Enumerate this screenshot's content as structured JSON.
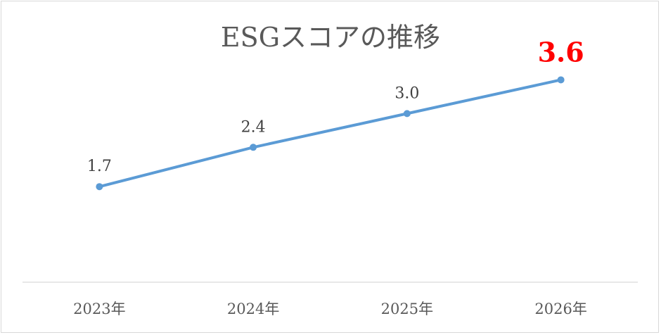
{
  "chart_data": {
    "type": "line",
    "title": "ESGスコアの推移",
    "categories": [
      "2023年",
      "2024年",
      "2025年",
      "2026年"
    ],
    "series": [
      {
        "values": [
          1.7,
          2.4,
          3.0,
          3.6
        ]
      }
    ],
    "data_labels": [
      "1.7",
      "2.4",
      "3.0",
      "3.6"
    ],
    "highlight_index": 3,
    "ylim": [
      0,
      4.0
    ],
    "grid": false,
    "legend": "none",
    "colors": {
      "line": "#5b9bd5",
      "highlight_label": "#ff0000",
      "axis": "#d9d9d9"
    }
  }
}
